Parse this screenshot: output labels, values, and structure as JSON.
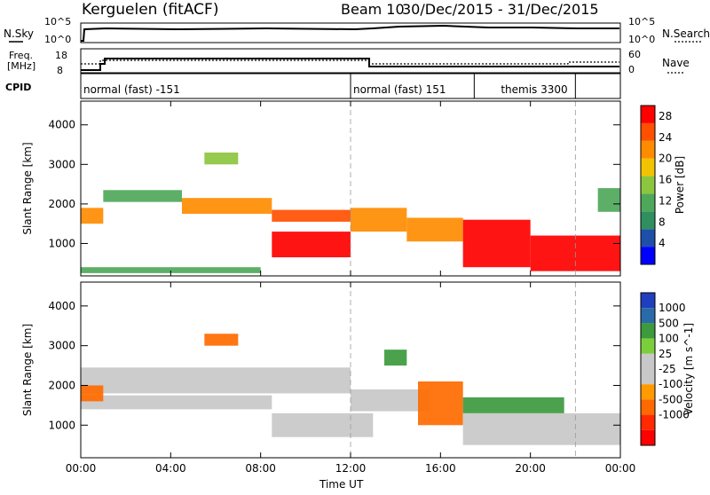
{
  "header": {
    "station": "Kerguelen (fitACF)",
    "beam_label": "Beam 10",
    "date_range": "30/Dec/2015 - 31/Dec/2015"
  },
  "status_panels": {
    "nsky_label": "N.Sky",
    "nsky_ticks": [
      "10^5",
      "10^0"
    ],
    "nsearch_label": "N.Search",
    "nsearch_ticks": [
      "10^5",
      "10^0"
    ],
    "freq_label": "Freq.",
    "freq_unit": "[MHz]",
    "freq_ticks": [
      "18",
      "8"
    ],
    "nave_label": "Nave",
    "nave_ticks": [
      "60",
      "0"
    ],
    "cpid_label": "CPID",
    "cpid_segments": [
      {
        "label": "normal (fast) -151",
        "start_hour": 0,
        "end_hour": 12
      },
      {
        "label": "normal (fast) 151",
        "start_hour": 12,
        "end_hour": 17.5
      },
      {
        "label": "themis 3300",
        "start_hour": 17.5,
        "end_hour": 22
      }
    ]
  },
  "colors": {
    "power_scale": [
      "#0000ff",
      "#1f4fa8",
      "#2f8f5f",
      "#4fa85a",
      "#8cc63f",
      "#f2c300",
      "#ff8c00",
      "#ff5000",
      "#ff0000"
    ],
    "velocity_scale": [
      "#1f3fbf",
      "#2a6aa8",
      "#3d9a3d",
      "#7ccf3a",
      "#c8c8c8",
      "#c8c8c8",
      "#ff9a00",
      "#ff6a00",
      "#ff2a00",
      "#ff0000"
    ]
  },
  "chart_data": [
    {
      "type": "heatmap",
      "name": "power",
      "ylabel": "Slant Range [km]",
      "xlabel": "",
      "ylim": [
        180,
        4600
      ],
      "yticks": [
        1000,
        2000,
        3000,
        4000
      ],
      "x_ticks": [
        "00:00",
        "04:00",
        "08:00",
        "12:00",
        "16:00",
        "20:00",
        "00:00"
      ],
      "x_tick_hours": [
        0,
        4,
        8,
        12,
        16,
        20,
        24
      ],
      "colorbar_label": "Power [dB]",
      "colorbar_ticks": [
        "4",
        "8",
        "12",
        "16",
        "20",
        "24",
        "28"
      ],
      "colorbar_range": [
        0,
        30
      ],
      "bands": [
        {
          "t0": 0.0,
          "t1": 1.0,
          "r0": 1500,
          "r1": 1900,
          "level": 20
        },
        {
          "t0": 1.0,
          "t1": 4.5,
          "r0": 2050,
          "r1": 2350,
          "level": 12
        },
        {
          "t0": 4.5,
          "t1": 8.5,
          "r0": 1750,
          "r1": 2150,
          "level": 22
        },
        {
          "t0": 8.5,
          "t1": 12.0,
          "r0": 1550,
          "r1": 1850,
          "level": 26
        },
        {
          "t0": 8.5,
          "t1": 12.0,
          "r0": 650,
          "r1": 1300,
          "level": 28
        },
        {
          "t0": 12.0,
          "t1": 14.5,
          "r0": 1300,
          "r1": 1900,
          "level": 22
        },
        {
          "t0": 14.5,
          "t1": 17.0,
          "r0": 1050,
          "r1": 1650,
          "level": 20
        },
        {
          "t0": 17.0,
          "t1": 20.0,
          "r0": 400,
          "r1": 1600,
          "level": 28
        },
        {
          "t0": 20.0,
          "t1": 24.0,
          "r0": 300,
          "r1": 1200,
          "level": 28
        },
        {
          "t0": 0.0,
          "t1": 8.0,
          "r0": 250,
          "r1": 400,
          "level": 10
        },
        {
          "t0": 5.5,
          "t1": 7.0,
          "r0": 3000,
          "r1": 3300,
          "level": 14
        },
        {
          "t0": 23.0,
          "t1": 24.0,
          "r0": 1800,
          "r1": 2400,
          "level": 10
        }
      ]
    },
    {
      "type": "heatmap",
      "name": "velocity",
      "ylabel": "Slant Range [km]",
      "xlabel": "Time UT",
      "ylim": [
        180,
        4600
      ],
      "yticks": [
        1000,
        2000,
        3000,
        4000
      ],
      "x_ticks": [
        "00:00",
        "04:00",
        "08:00",
        "12:00",
        "16:00",
        "20:00",
        "00:00"
      ],
      "x_tick_hours": [
        0,
        4,
        8,
        12,
        16,
        20,
        24
      ],
      "colorbar_label": "Velocity [m s^-1]",
      "colorbar_ticks": [
        "1000",
        "500",
        "100",
        "25",
        "-25",
        "-100",
        "-500",
        "-1000"
      ],
      "bands": [
        {
          "t0": 0.0,
          "t1": 12.0,
          "r0": 1800,
          "r1": 2450,
          "level": 0
        },
        {
          "t0": 0.0,
          "t1": 8.5,
          "r0": 1400,
          "r1": 1750,
          "level": 0
        },
        {
          "t0": 8.5,
          "t1": 13.0,
          "r0": 700,
          "r1": 1300,
          "level": 0
        },
        {
          "t0": 12.0,
          "t1": 15.5,
          "r0": 1350,
          "r1": 1900,
          "level": 0
        },
        {
          "t0": 15.0,
          "t1": 17.0,
          "r0": 1000,
          "r1": 2100,
          "level": -150
        },
        {
          "t0": 17.0,
          "t1": 24.0,
          "r0": 500,
          "r1": 1300,
          "level": 0
        },
        {
          "t0": 17.0,
          "t1": 21.5,
          "r0": 1300,
          "r1": 1700,
          "level": 200
        },
        {
          "t0": 0.0,
          "t1": 1.0,
          "r0": 1600,
          "r1": 2000,
          "level": -300
        },
        {
          "t0": 5.5,
          "t1": 7.0,
          "r0": 3000,
          "r1": 3300,
          "level": -200
        },
        {
          "t0": 13.5,
          "t1": 14.5,
          "r0": 2500,
          "r1": 2900,
          "level": 150
        }
      ]
    }
  ]
}
